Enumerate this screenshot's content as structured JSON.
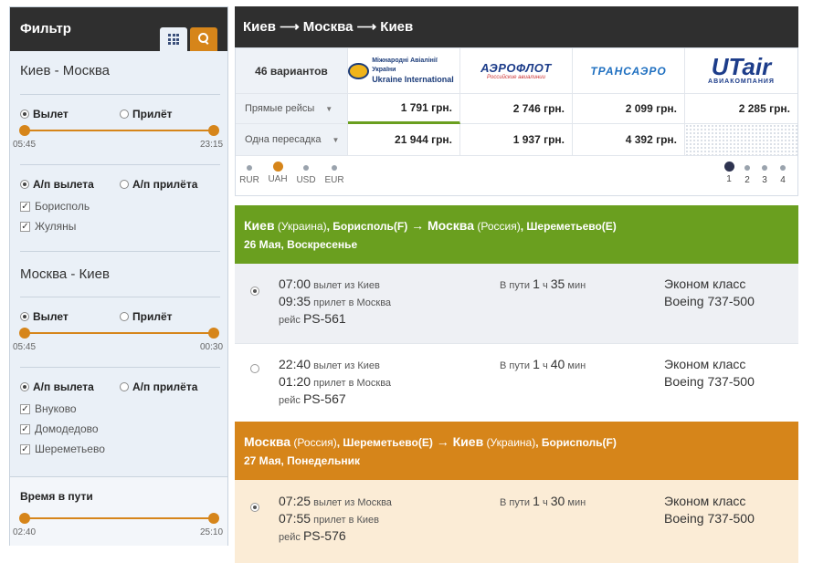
{
  "sidebar": {
    "title": "Фильтр",
    "grid_icon": "grid-icon",
    "search_icon": "search-icon",
    "outbound": {
      "route": "Киев - Москва",
      "departure_label": "Вылет",
      "arrival_label": "Прилёт",
      "time_from": "05:45",
      "time_to": "23:15",
      "airport_departure_label": "А/п вылета",
      "airport_arrival_label": "А/п прилёта",
      "airports": [
        "Борисполь",
        "Жуляны"
      ]
    },
    "return": {
      "route": "Москва - Киев",
      "departure_label": "Вылет",
      "arrival_label": "Прилёт",
      "time_from": "05:45",
      "time_to": "00:30",
      "airport_departure_label": "А/п вылета",
      "airport_arrival_label": "А/п прилёта",
      "airports": [
        "Внуково",
        "Домодедово",
        "Шереметьево"
      ]
    },
    "travel_time": {
      "label": "Время в пути",
      "from": "02:40",
      "to": "25:10"
    }
  },
  "main": {
    "title": "Киев ⟶ Москва ⟶ Киев",
    "variants": "46 вариантов",
    "airlines": [
      {
        "name_line1": "Міжнародні Авіалінії України",
        "name_line2": "Ukraine International"
      },
      {
        "name": "АЭРОФЛОТ",
        "sub": "Российские авиалинии"
      },
      {
        "name": "ТРАНСАЭРО"
      },
      {
        "name": "UTair",
        "sub": "АВИАКОМПАНИЯ"
      }
    ],
    "rows": [
      {
        "label": "Прямые рейсы",
        "prices": [
          "1 791 грн.",
          "2 746 грн.",
          "2 099 грн.",
          "2 285 грн."
        ]
      },
      {
        "label": "Одна пересадка",
        "prices": [
          "21 944 грн.",
          "1 937 грн.",
          "4 392 грн.",
          ""
        ]
      }
    ],
    "currencies": [
      "RUR",
      "UAH",
      "USD",
      "EUR"
    ],
    "selected_currency": "UAH",
    "pages": [
      "1",
      "2",
      "3",
      "4"
    ],
    "current_page": "1",
    "colors": {
      "green": "#6a9f1f",
      "orange": "#d6851a",
      "dark": "#2f2f2f"
    }
  },
  "legs": [
    {
      "from_city": "Киев",
      "from_country": "(Украина)",
      "from_airport": ", Борисполь(F)",
      "arrow": " → ",
      "to_city": "Москва",
      "to_country": "(Россия)",
      "to_airport": ", Шереметьево(E)",
      "date": "26 Мая, Воскресенье",
      "flights": [
        {
          "dep_time": "07:00",
          "dep_text": "вылет из Киев",
          "arr_time": "09:35",
          "arr_text": "прилет в Москва",
          "flight_label": "рейс",
          "flight_no": "PS-561",
          "dur_label": "В пути",
          "dur_h": "1",
          "dur_h_unit": "ч",
          "dur_m": "35",
          "dur_m_unit": "мин",
          "class": "Эконом класс",
          "aircraft": "Boeing 737-500",
          "selected": true
        },
        {
          "dep_time": "22:40",
          "dep_text": "вылет из Киев",
          "arr_time": "01:20",
          "arr_text": "прилет в Москва",
          "flight_label": "рейс",
          "flight_no": "PS-567",
          "dur_label": "В пути",
          "dur_h": "1",
          "dur_h_unit": "ч",
          "dur_m": "40",
          "dur_m_unit": "мин",
          "class": "Эконом класс",
          "aircraft": "Boeing 737-500",
          "selected": false
        }
      ]
    },
    {
      "from_city": "Москва",
      "from_country": "(Россия)",
      "from_airport": ", Шереметьево(E)",
      "arrow": " → ",
      "to_city": "Киев",
      "to_country": "(Украина)",
      "to_airport": ", Борисполь(F)",
      "date": "27 Мая, Понедельник",
      "flights": [
        {
          "dep_time": "07:25",
          "dep_text": "вылет из Москва",
          "arr_time": "07:55",
          "arr_text": "прилет в Киев",
          "flight_label": "рейс",
          "flight_no": "PS-576",
          "dur_label": "В пути",
          "dur_h": "1",
          "dur_h_unit": "ч",
          "dur_m": "30",
          "dur_m_unit": "мин",
          "class": "Эконом класс",
          "aircraft": "Boeing 737-500",
          "selected": true
        }
      ]
    }
  ]
}
